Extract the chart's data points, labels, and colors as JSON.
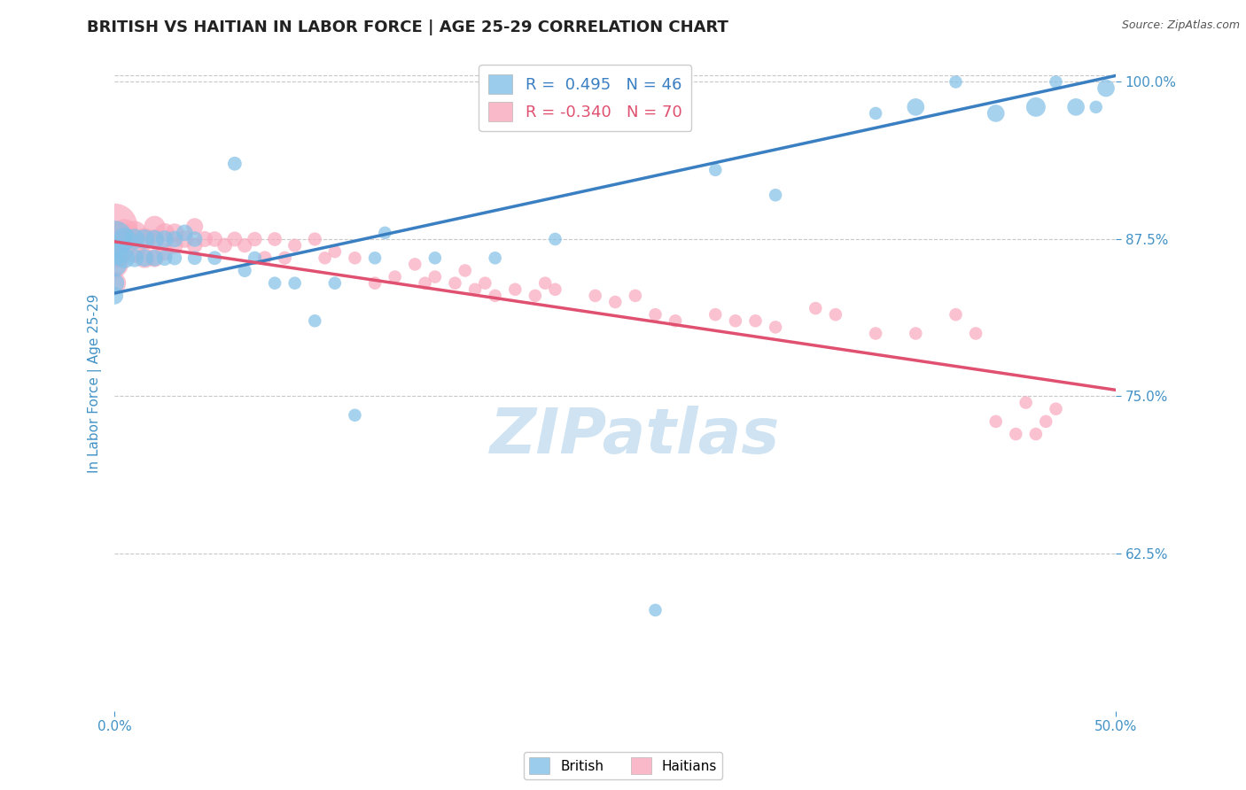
{
  "title": "BRITISH VS HAITIAN IN LABOR FORCE | AGE 25-29 CORRELATION CHART",
  "source": "Source: ZipAtlas.com",
  "ylabel": "In Labor Force | Age 25-29",
  "xlim": [
    0.0,
    0.5
  ],
  "ylim": [
    0.5,
    1.02
  ],
  "yticks": [
    0.625,
    0.75,
    0.875,
    1.0
  ],
  "ytick_labels": [
    "62.5%",
    "75.0%",
    "87.5%",
    "100.0%"
  ],
  "xtick_labels": [
    "0.0%",
    "50.0%"
  ],
  "xtick_pos": [
    0.0,
    0.5
  ],
  "british_color": "#82c0e8",
  "haitian_color": "#f9a8bc",
  "british_line_color": "#3a7fc1",
  "haitian_line_color": "#e05070",
  "legend_r_british": " 0.495",
  "legend_n_british": "46",
  "legend_r_haitian": "-0.340",
  "legend_n_haitian": "70",
  "british_line_x0": 0.0,
  "british_line_x1": 0.5,
  "british_line_y0": 0.832,
  "british_line_y1": 1.005,
  "haitian_line_x0": 0.0,
  "haitian_line_x1": 0.5,
  "haitian_line_y0": 0.873,
  "haitian_line_y1": 0.755,
  "british_x": [
    0.0,
    0.0,
    0.0,
    0.0,
    0.0,
    0.005,
    0.005,
    0.01,
    0.01,
    0.015,
    0.015,
    0.02,
    0.02,
    0.025,
    0.025,
    0.03,
    0.03,
    0.035,
    0.04,
    0.04,
    0.05,
    0.06,
    0.065,
    0.07,
    0.08,
    0.09,
    0.1,
    0.11,
    0.12,
    0.13,
    0.135,
    0.16,
    0.19,
    0.22,
    0.27,
    0.3,
    0.33,
    0.38,
    0.4,
    0.42,
    0.44,
    0.46,
    0.47,
    0.48,
    0.49,
    0.495
  ],
  "british_y": [
    0.875,
    0.865,
    0.855,
    0.84,
    0.83,
    0.875,
    0.86,
    0.875,
    0.86,
    0.875,
    0.86,
    0.875,
    0.86,
    0.875,
    0.86,
    0.875,
    0.86,
    0.88,
    0.875,
    0.86,
    0.86,
    0.935,
    0.85,
    0.86,
    0.84,
    0.84,
    0.81,
    0.84,
    0.735,
    0.86,
    0.88,
    0.86,
    0.86,
    0.875,
    0.58,
    0.93,
    0.91,
    0.975,
    0.98,
    1.0,
    0.975,
    0.98,
    1.0,
    0.98,
    0.98,
    0.995
  ],
  "british_sizes": [
    900,
    500,
    400,
    250,
    200,
    350,
    280,
    280,
    220,
    250,
    200,
    220,
    180,
    200,
    160,
    180,
    140,
    180,
    160,
    130,
    130,
    130,
    120,
    120,
    110,
    110,
    110,
    110,
    110,
    110,
    110,
    110,
    110,
    110,
    110,
    110,
    110,
    110,
    200,
    110,
    200,
    250,
    110,
    200,
    110,
    200
  ],
  "haitian_x": [
    0.0,
    0.0,
    0.0,
    0.0,
    0.0,
    0.005,
    0.005,
    0.01,
    0.01,
    0.015,
    0.015,
    0.02,
    0.02,
    0.02,
    0.025,
    0.025,
    0.03,
    0.03,
    0.035,
    0.04,
    0.04,
    0.045,
    0.05,
    0.055,
    0.06,
    0.065,
    0.07,
    0.075,
    0.08,
    0.085,
    0.09,
    0.1,
    0.105,
    0.11,
    0.12,
    0.13,
    0.14,
    0.15,
    0.155,
    0.16,
    0.17,
    0.175,
    0.18,
    0.185,
    0.19,
    0.2,
    0.21,
    0.215,
    0.22,
    0.24,
    0.25,
    0.26,
    0.27,
    0.28,
    0.3,
    0.31,
    0.32,
    0.33,
    0.35,
    0.36,
    0.38,
    0.4,
    0.42,
    0.43,
    0.44,
    0.45,
    0.455,
    0.46,
    0.465,
    0.47
  ],
  "haitian_y": [
    0.885,
    0.875,
    0.865,
    0.855,
    0.84,
    0.88,
    0.87,
    0.88,
    0.865,
    0.875,
    0.86,
    0.885,
    0.875,
    0.86,
    0.88,
    0.865,
    0.88,
    0.87,
    0.875,
    0.885,
    0.87,
    0.875,
    0.875,
    0.87,
    0.875,
    0.87,
    0.875,
    0.86,
    0.875,
    0.86,
    0.87,
    0.875,
    0.86,
    0.865,
    0.86,
    0.84,
    0.845,
    0.855,
    0.84,
    0.845,
    0.84,
    0.85,
    0.835,
    0.84,
    0.83,
    0.835,
    0.83,
    0.84,
    0.835,
    0.83,
    0.825,
    0.83,
    0.815,
    0.81,
    0.815,
    0.81,
    0.81,
    0.805,
    0.82,
    0.815,
    0.8,
    0.8,
    0.815,
    0.8,
    0.73,
    0.72,
    0.745,
    0.72,
    0.73,
    0.74
  ],
  "haitian_sizes": [
    1400,
    900,
    700,
    500,
    350,
    500,
    400,
    380,
    320,
    320,
    270,
    300,
    250,
    220,
    250,
    210,
    230,
    190,
    200,
    190,
    160,
    170,
    160,
    150,
    150,
    140,
    140,
    130,
    130,
    120,
    120,
    120,
    110,
    110,
    110,
    110,
    110,
    110,
    110,
    110,
    110,
    110,
    110,
    110,
    110,
    110,
    110,
    110,
    110,
    110,
    110,
    110,
    110,
    110,
    110,
    110,
    110,
    110,
    110,
    110,
    110,
    110,
    110,
    110,
    110,
    110,
    110,
    110,
    110,
    110
  ],
  "watermark_text": "ZIPatlas",
  "watermark_color": "#c8dff0",
  "title_fontsize": 13,
  "axis_color": "#4292c6",
  "grid_color": "#c8c8c8",
  "background_color": "#ffffff"
}
